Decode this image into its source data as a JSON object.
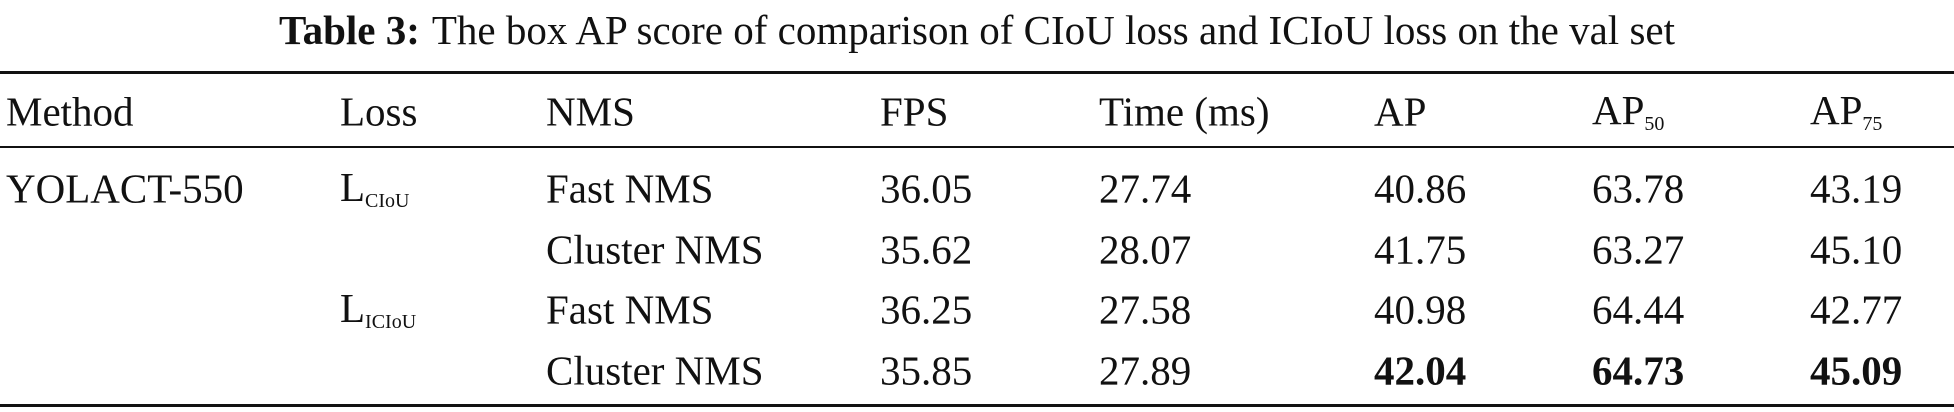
{
  "caption": {
    "label": "Table 3:",
    "text": "The box AP score of comparison of CIoU loss and ICIoU loss on the val set"
  },
  "table": {
    "header": [
      {
        "text": "Method"
      },
      {
        "text": "Loss"
      },
      {
        "text": "NMS"
      },
      {
        "text": "FPS"
      },
      {
        "text": "Time (ms)"
      },
      {
        "text": "AP"
      },
      {
        "text": "AP",
        "sub": "50"
      },
      {
        "text": "AP",
        "sub": "75"
      }
    ],
    "method": "YOLACT-550",
    "groups": [
      {
        "loss": {
          "text": "L",
          "sub": "CIoU"
        },
        "rows": [
          [
            "Fast NMS",
            "36.05",
            "27.74",
            "40.86",
            "63.78",
            "43.19"
          ],
          [
            "Cluster NMS",
            "35.62",
            "28.07",
            "41.75",
            "63.27",
            "45.10"
          ]
        ]
      },
      {
        "loss": {
          "text": "L",
          "sub": "ICIoU"
        },
        "rows": [
          [
            "Fast NMS",
            "36.25",
            "27.58",
            "40.98",
            "64.44",
            "42.77"
          ],
          [
            "Cluster NMS",
            "35.85",
            "27.89",
            "42.04",
            "64.73",
            "45.09"
          ]
        ]
      }
    ]
  }
}
